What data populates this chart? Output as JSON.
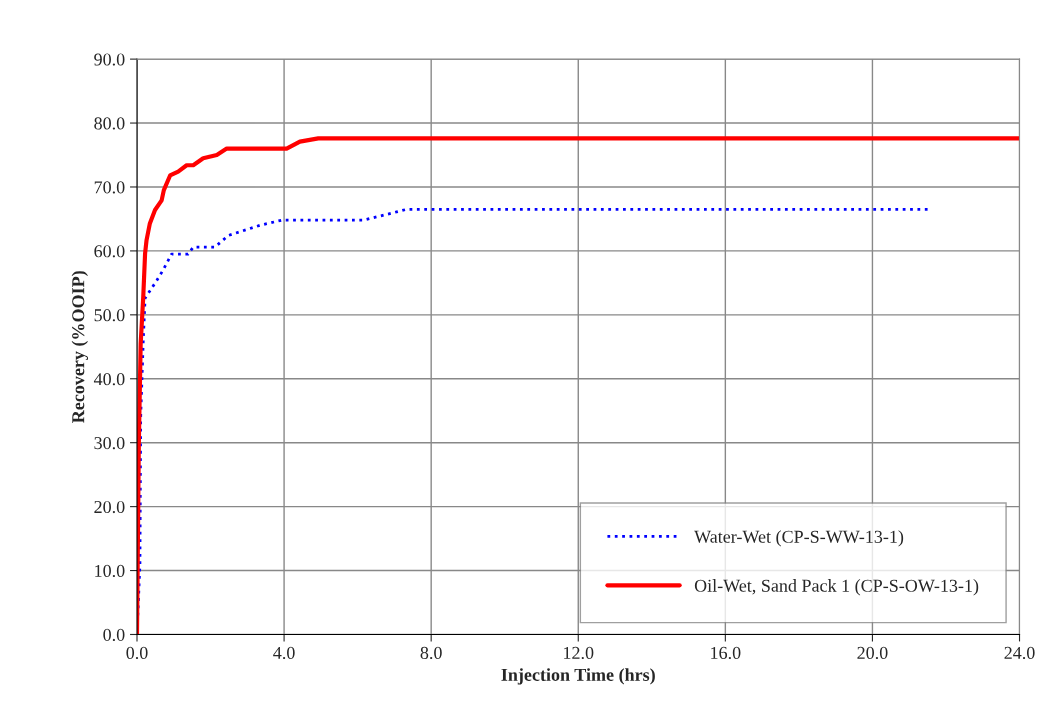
{
  "chart_data": {
    "type": "line",
    "xlabel": "Injection Time (hrs)",
    "ylabel": "Recovery (%OOIP)",
    "xlim": [
      0,
      24
    ],
    "ylim": [
      0,
      90
    ],
    "xticks": [
      {
        "value": 0,
        "label": "0.0"
      },
      {
        "value": 4,
        "label": "4.0"
      },
      {
        "value": 8,
        "label": "8.0"
      },
      {
        "value": 12,
        "label": "12.0"
      },
      {
        "value": 16,
        "label": "16.0"
      },
      {
        "value": 20,
        "label": "20.0"
      },
      {
        "value": 24,
        "label": "24.0"
      }
    ],
    "yticks": [
      {
        "value": 0,
        "label": "0.0"
      },
      {
        "value": 10,
        "label": "10.0"
      },
      {
        "value": 20,
        "label": "20.0"
      },
      {
        "value": 30,
        "label": "30.0"
      },
      {
        "value": 40,
        "label": "40.0"
      },
      {
        "value": 50,
        "label": "50.0"
      },
      {
        "value": 60,
        "label": "60.0"
      },
      {
        "value": 70,
        "label": "70.0"
      },
      {
        "value": 80,
        "label": "80.0"
      },
      {
        "value": 90,
        "label": "90.0"
      }
    ],
    "grid": true,
    "legend": "bottom right",
    "series": [
      {
        "name": "Water-Wet (CP-S-WW-13-1)",
        "color": "#0000ff",
        "line_style": "dotted",
        "x": [
          0,
          0.08,
          0.1,
          0.17,
          0.22,
          0.54,
          0.71,
          0.94,
          1.39,
          1.53,
          2.12,
          2.48,
          3.34,
          3.93,
          6.15,
          7.06,
          7.33,
          21.5
        ],
        "values": [
          0,
          11,
          34,
          46,
          52.6,
          55.4,
          57,
          59.5,
          59.5,
          60.6,
          60.6,
          62.4,
          64.0,
          64.8,
          64.8,
          66.1,
          66.5,
          66.5
        ]
      },
      {
        "name": "Oil-Wet, Sand Pack 1 (CP-S-OW-13-1)",
        "color": "#ff0000",
        "line_style": "solid",
        "x": [
          0,
          0.05,
          0.1,
          0.17,
          0.22,
          0.26,
          0.35,
          0.49,
          0.67,
          0.73,
          0.9,
          1.12,
          1.35,
          1.53,
          1.8,
          2.17,
          2.44,
          4.07,
          4.43,
          4.93,
          24
        ],
        "values": [
          0,
          30,
          45.5,
          52.8,
          59.6,
          61.7,
          64.3,
          66.4,
          67.9,
          69.5,
          71.8,
          72.4,
          73.4,
          73.4,
          74.5,
          75.0,
          76.0,
          76.0,
          77.1,
          77.6,
          77.6
        ]
      }
    ]
  }
}
